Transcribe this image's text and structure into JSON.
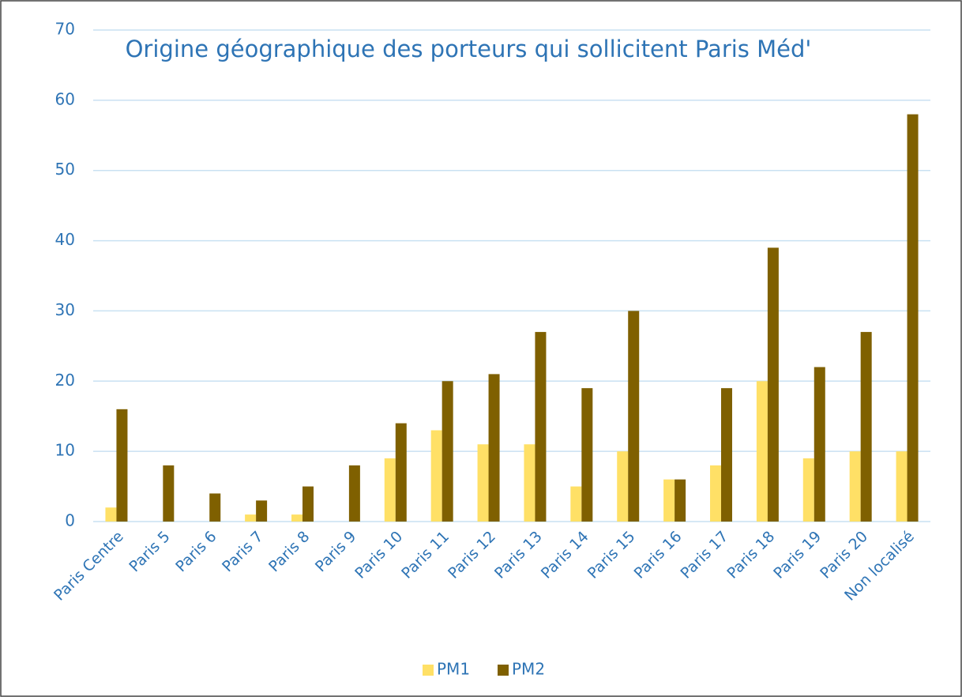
{
  "chart_data": {
    "type": "bar",
    "title": "Origine géographique des porteurs qui sollicitent Paris Méd'",
    "categories": [
      "Paris Centre",
      "Paris 5",
      "Paris 6",
      "Paris 7",
      "Paris 8",
      "Paris 9",
      "Paris 10",
      "Paris 11",
      "Paris 12",
      "Paris 13",
      "Paris 14",
      "Paris 15",
      "Paris 16",
      "Paris 17",
      "Paris 18",
      "Paris 19",
      "Paris 20",
      "Non localisé"
    ],
    "series": [
      {
        "name": "PM1",
        "color": "#ffe066",
        "values": [
          2,
          0,
          0,
          1,
          1,
          0,
          9,
          13,
          11,
          11,
          5,
          10,
          6,
          8,
          20,
          9,
          10,
          10
        ]
      },
      {
        "name": "PM2",
        "color": "#7f6000",
        "values": [
          16,
          8,
          4,
          3,
          5,
          8,
          14,
          20,
          21,
          27,
          19,
          30,
          6,
          19,
          39,
          22,
          27,
          58
        ]
      }
    ],
    "ylim": [
      0,
      70
    ],
    "yticks": [
      0,
      10,
      20,
      30,
      40,
      50,
      60,
      70
    ],
    "grid": true,
    "legend": "bottom"
  }
}
